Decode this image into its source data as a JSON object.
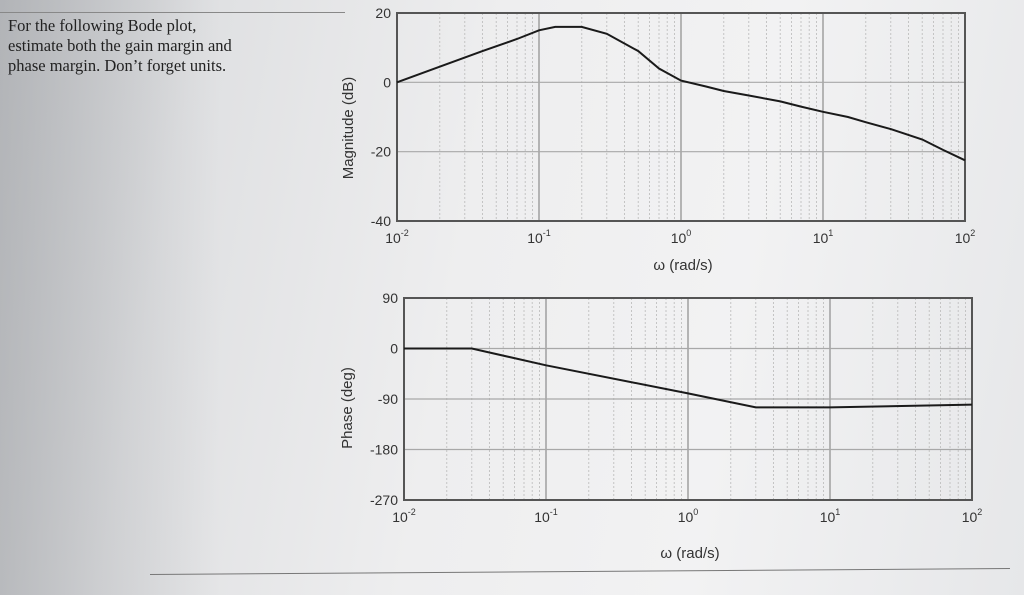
{
  "problem": {
    "lines": [
      "For the following Bode plot,",
      "estimate both the gain margin and",
      "phase margin. Don’t forget units."
    ]
  },
  "chart_data": [
    {
      "type": "line",
      "xscale": "log",
      "xlim": [
        0.01,
        100
      ],
      "ylim": [
        -40,
        20
      ],
      "xlabel": "ω (rad/s)",
      "ylabel": "Magnitude (dB)",
      "xticks": [
        0.01,
        0.1,
        1,
        10,
        100
      ],
      "xtick_labels": [
        {
          "base": "10",
          "exp": "-2"
        },
        {
          "base": "10",
          "exp": "-1"
        },
        {
          "base": "10",
          "exp": "0"
        },
        {
          "base": "10",
          "exp": "1"
        },
        {
          "base": "10",
          "exp": "2"
        }
      ],
      "yticks": [
        20,
        0,
        -20,
        -40
      ],
      "ytick_labels": [
        "20",
        "0",
        "-20",
        "-40"
      ],
      "grid": true,
      "series": [
        {
          "x": [
            0.01,
            0.02,
            0.04,
            0.07,
            0.1,
            0.13,
            0.2,
            0.3,
            0.5,
            0.7,
            1,
            1.5,
            2,
            3,
            5,
            7,
            10,
            15,
            20,
            30,
            50,
            70,
            100
          ],
          "y": [
            0,
            4.5,
            9,
            12.5,
            15,
            16,
            16,
            14,
            9,
            4,
            0.5,
            -1.2,
            -2.5,
            -3.8,
            -5.5,
            -7,
            -8.5,
            -10,
            -11.5,
            -13.5,
            -16.5,
            -19.5,
            -22.5
          ]
        }
      ]
    },
    {
      "type": "line",
      "xscale": "log",
      "xlim": [
        0.01,
        100
      ],
      "ylim": [
        -270,
        90
      ],
      "xlabel": "ω (rad/s)",
      "ylabel": "Phase (deg)",
      "xticks": [
        0.01,
        0.1,
        1,
        10,
        100
      ],
      "xtick_labels": [
        {
          "base": "10",
          "exp": "-2"
        },
        {
          "base": "10",
          "exp": "-1"
        },
        {
          "base": "10",
          "exp": "0"
        },
        {
          "base": "10",
          "exp": "1"
        },
        {
          "base": "10",
          "exp": "2"
        }
      ],
      "yticks": [
        90,
        0,
        -90,
        -180,
        -270
      ],
      "ytick_labels": [
        "90",
        "0",
        "-90",
        "-180",
        "-270"
      ],
      "grid": true,
      "series": [
        {
          "x": [
            0.01,
            0.03,
            0.1,
            1,
            3,
            10,
            100
          ],
          "y": [
            0,
            0,
            -30,
            -80,
            -105,
            -105,
            -100
          ]
        }
      ]
    }
  ]
}
